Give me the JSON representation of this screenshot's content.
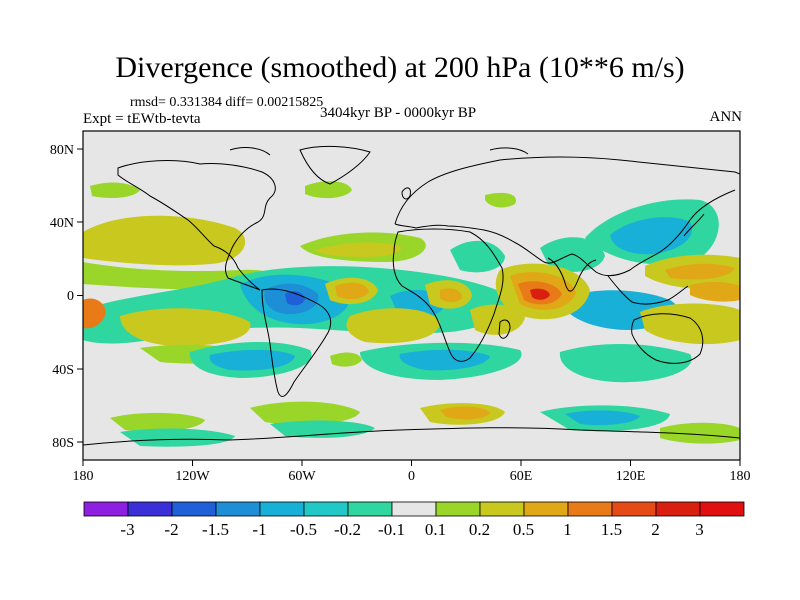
{
  "title": "Divergence (smoothed) at 200 hPa (10**6 m/s)",
  "stats": "rmsd= 0.331384 diff= 0.00215825",
  "experiment": "Expt = tEWtb-tevta",
  "period": "3404kyr BP - 0000kyr BP",
  "season": "ANN",
  "map": {
    "lon_ticks": [
      "180",
      "120W",
      "60W",
      "0",
      "60E",
      "120E",
      "180"
    ],
    "lat_ticks": [
      "80N",
      "40N",
      "0",
      "40S",
      "80S"
    ],
    "background_color": "#e6e6e6"
  },
  "colorbar": {
    "labels": [
      "-3",
      "-2",
      "-1.5",
      "-1",
      "-0.5",
      "-0.2",
      "-0.1",
      "0.1",
      "0.2",
      "0.5",
      "1",
      "1.5",
      "2",
      "3"
    ],
    "colors": [
      "#8c1fe0",
      "#3b2fd8",
      "#1f5fd8",
      "#1e8fd6",
      "#19b0d8",
      "#20c8c8",
      "#2fd6a0",
      "#e6e6e6",
      "#9ad62a",
      "#c8c81e",
      "#e0a817",
      "#e87a17",
      "#e44b16",
      "#d81f10",
      "#e01010"
    ]
  }
}
